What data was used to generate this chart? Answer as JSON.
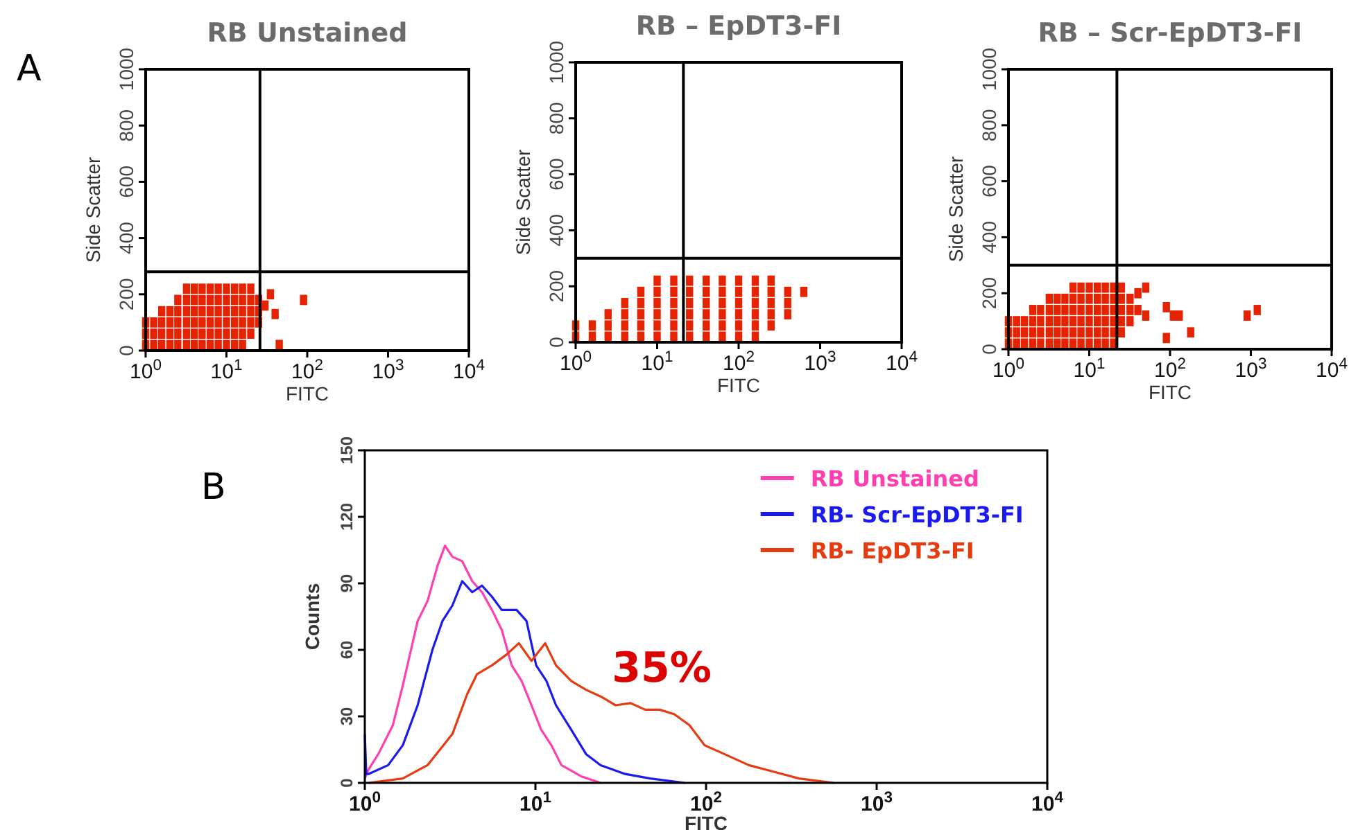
{
  "chart_data": [
    {
      "type": "scatter",
      "title": "RB Unstained",
      "xlabel": "FITC",
      "ylabel": "Side Scatter",
      "log": "x",
      "marker": "square",
      "xlim": [
        1,
        10000
      ],
      "ylim": [
        0,
        1000
      ],
      "xticks": [
        {
          "value": 1,
          "label": "10$^{0}$"
        },
        {
          "value": 10,
          "label": "10$^{1}$"
        },
        {
          "value": 100,
          "label": "10$^{2}$"
        },
        {
          "value": 1000,
          "label": "10$^{3}$"
        },
        {
          "value": 10000,
          "label": "10$^{4}$"
        }
      ],
      "yticks": [
        0,
        200,
        400,
        600,
        800,
        1000
      ],
      "ref_lines": [
        {
          "axis": "x",
          "value": 26
        },
        {
          "axis": "y",
          "value": 280
        }
      ],
      "annotations": [
        "A"
      ],
      "series": [
        {
          "color": "#e62200",
          "x": [
            1,
            1,
            1,
            1.26,
            1.26,
            1.26,
            1.58,
            1.58,
            1.58,
            1.58,
            2,
            2,
            2,
            2,
            2.5,
            2.5,
            2.5,
            2.5,
            2.5,
            3.2,
            3.2,
            3.2,
            3.2,
            3.2,
            3.2,
            4,
            4,
            4,
            4,
            4,
            4,
            5,
            5,
            5,
            5,
            5,
            5,
            6.3,
            6.3,
            6.3,
            6.3,
            6.3,
            6.3,
            7.9,
            7.9,
            7.9,
            7.9,
            7.9,
            7.9,
            10,
            10,
            10,
            10,
            10,
            10,
            12.6,
            12.6,
            12.6,
            12.6,
            12.6,
            12.6,
            15.8,
            15.8,
            15.8,
            15.8,
            15.8,
            15.8,
            20,
            20,
            20,
            20,
            20,
            25,
            25,
            25,
            35,
            90,
            40,
            45,
            30
          ],
          "values": [
            20,
            60,
            100,
            20,
            60,
            100,
            20,
            60,
            100,
            140,
            20,
            60,
            100,
            140,
            20,
            60,
            100,
            140,
            180,
            20,
            60,
            100,
            140,
            180,
            220,
            20,
            60,
            100,
            140,
            180,
            220,
            20,
            60,
            100,
            140,
            180,
            220,
            20,
            60,
            100,
            140,
            180,
            220,
            20,
            60,
            100,
            140,
            180,
            220,
            20,
            60,
            100,
            140,
            180,
            220,
            20,
            60,
            100,
            140,
            180,
            220,
            20,
            60,
            100,
            140,
            180,
            220,
            60,
            100,
            140,
            180,
            220,
            100,
            140,
            180,
            200,
            180,
            130,
            20,
            160
          ]
        }
      ]
    },
    {
      "type": "scatter",
      "title": "RB – EpDT3-FI",
      "xlabel": "FITC",
      "ylabel": "Side Scatter",
      "log": "x",
      "marker": "square",
      "xlim": [
        1,
        10000
      ],
      "ylim": [
        0,
        1000
      ],
      "xticks": [
        {
          "value": 1,
          "label": "10$^{0}$"
        },
        {
          "value": 10,
          "label": "10$^{1}$"
        },
        {
          "value": 100,
          "label": "10$^{2}$"
        },
        {
          "value": 1000,
          "label": "10$^{3}$"
        },
        {
          "value": 10000,
          "label": "10$^{4}$"
        }
      ],
      "yticks": [
        0,
        200,
        400,
        600,
        800,
        1000
      ],
      "ref_lines": [
        {
          "axis": "x",
          "value": 21
        },
        {
          "axis": "y",
          "value": 300
        }
      ],
      "series": [
        {
          "color": "#e62200",
          "x": [
            1,
            1,
            1.6,
            1.6,
            2.5,
            2.5,
            2.5,
            4,
            4,
            4,
            4,
            6.3,
            6.3,
            6.3,
            6.3,
            6.3,
            10,
            10,
            10,
            10,
            10,
            10,
            16,
            16,
            16,
            16,
            16,
            16,
            25,
            25,
            25,
            25,
            25,
            25,
            40,
            40,
            40,
            40,
            40,
            40,
            63,
            63,
            63,
            63,
            63,
            63,
            100,
            100,
            100,
            100,
            100,
            100,
            160,
            160,
            160,
            160,
            160,
            160,
            250,
            250,
            250,
            250,
            250,
            400,
            400,
            400,
            630
          ],
          "values": [
            20,
            60,
            20,
            60,
            20,
            60,
            100,
            20,
            60,
            100,
            140,
            20,
            60,
            100,
            140,
            180,
            20,
            60,
            100,
            140,
            180,
            220,
            20,
            60,
            100,
            140,
            180,
            220,
            20,
            60,
            100,
            140,
            180,
            220,
            20,
            60,
            100,
            140,
            180,
            220,
            20,
            60,
            100,
            140,
            180,
            220,
            20,
            60,
            100,
            140,
            180,
            220,
            20,
            60,
            100,
            140,
            180,
            220,
            60,
            100,
            140,
            180,
            220,
            100,
            140,
            180,
            180
          ]
        }
      ]
    },
    {
      "type": "scatter",
      "title": "RB – Scr-EpDT3-FI",
      "xlabel": "FITC",
      "ylabel": "Side Scatter",
      "log": "x",
      "marker": "square",
      "xlim": [
        1,
        10000
      ],
      "ylim": [
        0,
        1000
      ],
      "xticks": [
        {
          "value": 1,
          "label": "10$^{0}$"
        },
        {
          "value": 10,
          "label": "10$^{1}$"
        },
        {
          "value": 100,
          "label": "10$^{2}$"
        },
        {
          "value": 1000,
          "label": "10$^{3}$"
        },
        {
          "value": 10000,
          "label": "10$^{4}$"
        }
      ],
      "yticks": [
        0,
        200,
        400,
        600,
        800,
        1000
      ],
      "ref_lines": [
        {
          "axis": "x",
          "value": 22
        },
        {
          "axis": "y",
          "value": 300
        }
      ],
      "series": [
        {
          "color": "#e62200",
          "x": [
            1,
            1,
            1,
            1.26,
            1.26,
            1.26,
            1.58,
            1.58,
            1.58,
            2,
            2,
            2,
            2,
            2.5,
            2.5,
            2.5,
            2.5,
            3.2,
            3.2,
            3.2,
            3.2,
            3.2,
            4,
            4,
            4,
            4,
            4,
            5,
            5,
            5,
            5,
            5,
            6.3,
            6.3,
            6.3,
            6.3,
            6.3,
            6.3,
            7.9,
            7.9,
            7.9,
            7.9,
            7.9,
            7.9,
            10,
            10,
            10,
            10,
            10,
            10,
            12.6,
            12.6,
            12.6,
            12.6,
            12.6,
            12.6,
            15.8,
            15.8,
            15.8,
            15.8,
            15.8,
            15.8,
            20,
            20,
            20,
            20,
            20,
            20,
            25,
            25,
            25,
            25,
            25,
            32,
            32,
            32,
            40,
            40,
            50,
            50,
            90,
            110,
            130,
            180,
            90,
            900,
            1200
          ],
          "values": [
            20,
            60,
            100,
            20,
            60,
            100,
            20,
            60,
            100,
            20,
            60,
            100,
            140,
            20,
            60,
            100,
            140,
            20,
            60,
            100,
            140,
            180,
            20,
            60,
            100,
            140,
            180,
            20,
            60,
            100,
            140,
            180,
            20,
            60,
            100,
            140,
            180,
            220,
            20,
            60,
            100,
            140,
            180,
            220,
            20,
            60,
            100,
            140,
            180,
            220,
            20,
            60,
            100,
            140,
            180,
            220,
            20,
            60,
            100,
            140,
            180,
            220,
            20,
            60,
            100,
            140,
            180,
            220,
            60,
            100,
            140,
            180,
            220,
            100,
            140,
            180,
            140,
            200,
            120,
            220,
            150,
            120,
            120,
            60,
            40,
            120,
            140
          ]
        }
      ]
    },
    {
      "type": "line",
      "xlabel": "FITC",
      "ylabel": "Counts",
      "log": "x",
      "legend": "top right",
      "xlim": [
        1,
        10000
      ],
      "ylim": [
        0,
        150
      ],
      "xticks": [
        {
          "value": 1,
          "label": "10$^{0}$"
        },
        {
          "value": 10,
          "label": "10$^{1}$"
        },
        {
          "value": 100,
          "label": "10$^{2}$"
        },
        {
          "value": 1000,
          "label": "10$^{3}$"
        },
        {
          "value": 10000,
          "label": "10$^{4}$"
        }
      ],
      "yticks": [
        0,
        30,
        60,
        90,
        120,
        150
      ],
      "annotations": [
        "B",
        "35%"
      ],
      "series": [
        {
          "name": "RB Unstained",
          "color": "#ff3fb0",
          "x": [
            1,
            1.05,
            1.2,
            1.46,
            1.67,
            2.04,
            2.33,
            2.67,
            2.95,
            3.26,
            3.72,
            4.26,
            4.86,
            5.56,
            6.35,
            7.26,
            8.3,
            9.48,
            10.8,
            12.4,
            14.2,
            18.5,
            24.1
          ],
          "values": [
            2,
            6,
            13,
            26,
            44,
            73,
            82,
            98,
            107,
            102,
            100,
            91,
            86,
            78,
            69,
            53,
            46,
            35,
            24,
            17,
            8,
            3,
            0
          ]
        },
        {
          "name": "RB- Scr-EpDT3-FI",
          "color": "#1a1aee",
          "x": [
            1,
            1.02,
            1.05,
            1.37,
            1.67,
            2.04,
            2.49,
            2.85,
            3.26,
            3.72,
            4.26,
            4.86,
            5.56,
            6.35,
            7.76,
            8.87,
            10.1,
            11.6,
            13.2,
            16.2,
            19.8,
            24.1,
            33.6,
            47,
            75
          ],
          "values": [
            22,
            4,
            4,
            8,
            17,
            35,
            60,
            73,
            80,
            91,
            86,
            89,
            84,
            78,
            78,
            73,
            53,
            46,
            35,
            24,
            13,
            8,
            4,
            2,
            0
          ]
        },
        {
          "name": "RB- EpDT3-FI",
          "color": "#e63b10",
          "x": [
            1.05,
            1.67,
            2.33,
            3.26,
            3.98,
            4.54,
            5.56,
            6.8,
            8,
            9.48,
            11.4,
            13.2,
            16.2,
            19.8,
            24.1,
            29.5,
            36,
            44,
            53.5,
            65,
            80,
            98,
            128,
            178,
            250,
            350,
            560
          ],
          "values": [
            0,
            2,
            8,
            22,
            40,
            49,
            53,
            58,
            63,
            55,
            63,
            53,
            46,
            42,
            39,
            35,
            36,
            33,
            33,
            31,
            26,
            17,
            13,
            8,
            5,
            2,
            0
          ]
        }
      ]
    }
  ]
}
